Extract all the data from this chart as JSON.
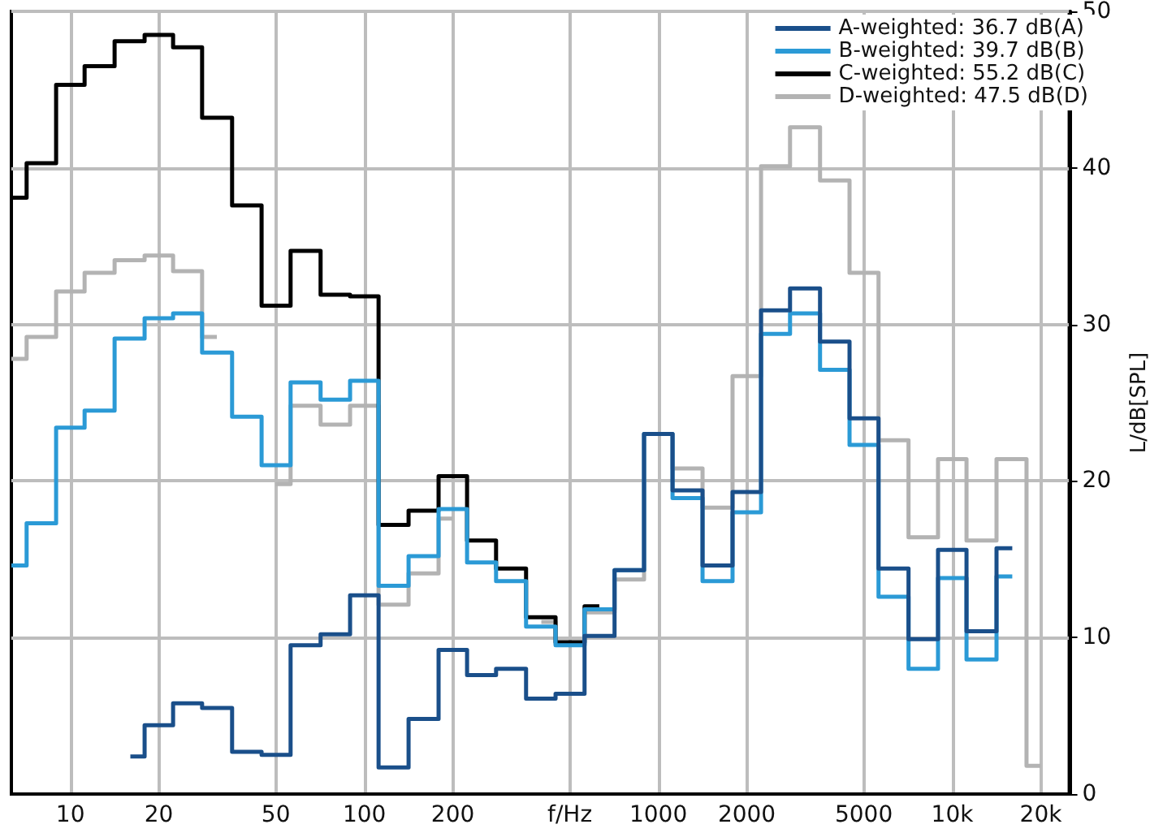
{
  "chart_data": {
    "type": "step",
    "xlabel": null,
    "ylabel": "L/dB[SPL]",
    "x": [
      6.3,
      8,
      10,
      12.5,
      16,
      20,
      25,
      31.5,
      40,
      50,
      63,
      80,
      100,
      125,
      160,
      200,
      250,
      315,
      400,
      500,
      630,
      800,
      1000,
      1250,
      1600,
      2000,
      2500,
      3150,
      4000,
      5000,
      6300,
      8000,
      10000,
      12500,
      16000,
      20000
    ],
    "series": [
      {
        "name": "A-weighted: 36.7 dB(A)",
        "color": "#1a4f8a",
        "values": [
          null,
          null,
          null,
          null,
          2.4,
          4.4,
          5.8,
          5.5,
          2.7,
          2.5,
          9.5,
          10.2,
          12.7,
          1.7,
          4.8,
          9.2,
          7.6,
          8.0,
          6.1,
          6.4,
          10.1,
          14.3,
          23.0,
          19.4,
          14.6,
          19.3,
          30.9,
          32.3,
          28.9,
          24.0,
          14.4,
          9.9,
          15.6,
          10.4,
          15.7,
          null
        ]
      },
      {
        "name": "B-weighted: 39.7 dB(B)",
        "color": "#2b9ad6",
        "values": [
          14.6,
          17.3,
          23.4,
          24.5,
          29.1,
          30.4,
          30.7,
          28.2,
          24.1,
          21.0,
          26.3,
          25.2,
          26.4,
          13.3,
          15.2,
          18.2,
          14.8,
          13.6,
          10.7,
          9.5,
          11.8,
          14.3,
          23.0,
          18.9,
          13.6,
          18.0,
          29.4,
          30.7,
          27.1,
          22.3,
          12.6,
          8.0,
          13.8,
          8.6,
          13.9,
          null
        ]
      },
      {
        "name": "C-weighted: 55.2 dB(C)",
        "color": "#000000",
        "values": [
          38.1,
          40.3,
          45.3,
          46.5,
          48.1,
          48.5,
          47.7,
          43.2,
          37.6,
          31.2,
          34.7,
          31.9,
          31.8,
          17.2,
          18.1,
          20.3,
          16.2,
          14.4,
          11.3,
          9.7,
          12.0,
          null,
          null,
          null,
          null,
          null,
          null,
          null,
          null,
          null,
          null,
          null,
          null,
          null,
          null,
          null
        ]
      },
      {
        "name": "D-weighted: 47.5 dB(D)",
        "color": "#b3b3b3",
        "values": [
          27.8,
          29.2,
          32.1,
          33.3,
          34.1,
          34.4,
          33.4,
          29.2,
          null,
          19.8,
          24.8,
          23.6,
          24.8,
          12.1,
          14.1,
          17.6,
          null,
          null,
          11.0,
          9.6,
          11.6,
          13.7,
          23.0,
          20.8,
          18.3,
          26.7,
          40.1,
          42.6,
          39.2,
          33.3,
          22.6,
          16.4,
          21.4,
          16.2,
          21.4,
          1.8
        ]
      }
    ],
    "xlim": [
      6.3,
      25000
    ],
    "xticks": [
      10,
      20,
      50,
      100,
      200,
      {
        "value": 500,
        "label": "f/Hz"
      },
      1000,
      2000,
      5000,
      {
        "value": 10000,
        "label": "10k"
      },
      {
        "value": 20000,
        "label": "20k"
      }
    ],
    "ylim": [
      0,
      50
    ],
    "yticks": [
      0,
      10,
      20,
      30,
      40,
      50
    ],
    "log": "x",
    "grid": true,
    "legend": "top right",
    "marker": "none",
    "line_style": "solid"
  }
}
